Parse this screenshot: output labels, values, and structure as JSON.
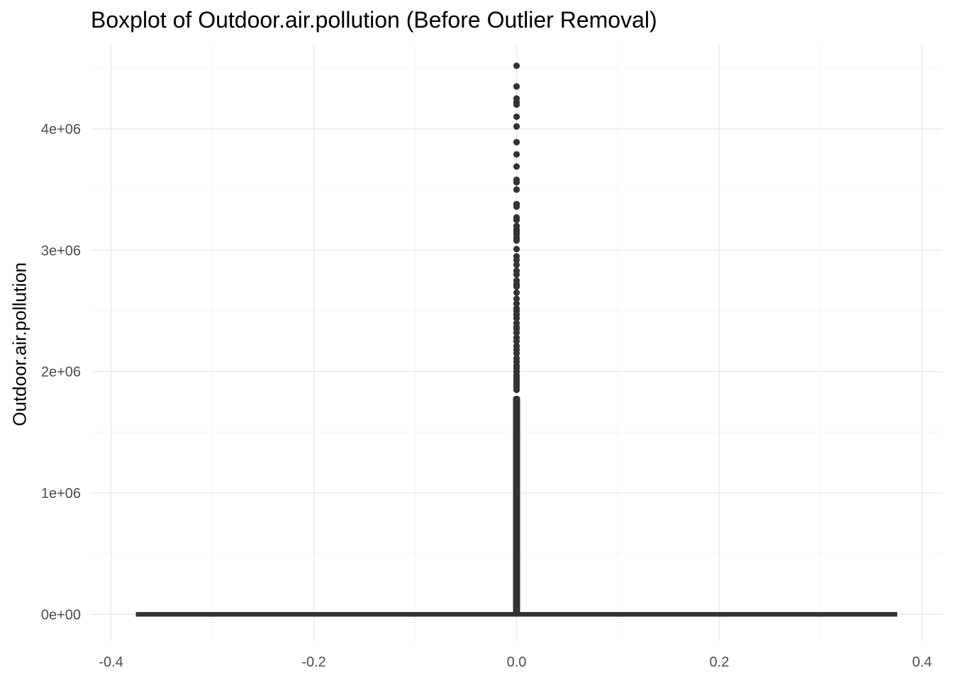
{
  "chart_data": {
    "type": "boxplot",
    "title": "Boxplot of Outdoor.air.pollution (Before Outlier Removal)",
    "xlabel": "",
    "ylabel": "Outdoor.air.pollution",
    "xlim": [
      -0.42,
      0.42
    ],
    "ylim": [
      -220000,
      4700000
    ],
    "x_ticks": [
      {
        "value": -0.4,
        "label": "-0.4"
      },
      {
        "value": -0.2,
        "label": "-0.2"
      },
      {
        "value": 0.0,
        "label": "0.0"
      },
      {
        "value": 0.2,
        "label": "0.2"
      },
      {
        "value": 0.4,
        "label": "0.4"
      }
    ],
    "y_ticks": [
      {
        "value": 0,
        "label": "0e+00"
      },
      {
        "value": 1000000,
        "label": "1e+06"
      },
      {
        "value": 2000000,
        "label": "2e+06"
      },
      {
        "value": 3000000,
        "label": "3e+06"
      },
      {
        "value": 4000000,
        "label": "4e+06"
      }
    ],
    "grid": true,
    "box": {
      "x": 0.0,
      "width": 0.75,
      "q1": 0,
      "median": 0,
      "q3": 0,
      "whisker_low": 0,
      "whisker_high": 0,
      "dense_outlier_range": [
        0,
        1800000
      ]
    },
    "outliers": [
      4520000,
      4350000,
      4250000,
      4220000,
      4200000,
      4100000,
      4020000,
      3890000,
      3790000,
      3690000,
      3580000,
      3560000,
      3500000,
      3380000,
      3360000,
      3270000,
      3250000,
      3200000,
      3170000,
      3150000,
      3130000,
      3100000,
      3080000,
      3010000,
      2950000,
      2920000,
      2880000,
      2830000,
      2800000,
      2750000,
      2720000,
      2700000,
      2650000,
      2600000,
      2560000,
      2520000,
      2500000,
      2470000,
      2440000,
      2400000,
      2370000,
      2350000,
      2320000,
      2280000,
      2250000,
      2210000,
      2180000,
      2150000,
      2110000,
      2080000,
      2050000,
      2030000,
      2000000,
      1970000,
      1950000,
      1930000,
      1910000,
      1890000,
      1870000,
      1850000
    ],
    "colors": {
      "marks": "#333333",
      "grid_major": "#ebebeb",
      "grid_minor": "#f5f5f5",
      "tick_text": "#4d4d4d"
    }
  }
}
